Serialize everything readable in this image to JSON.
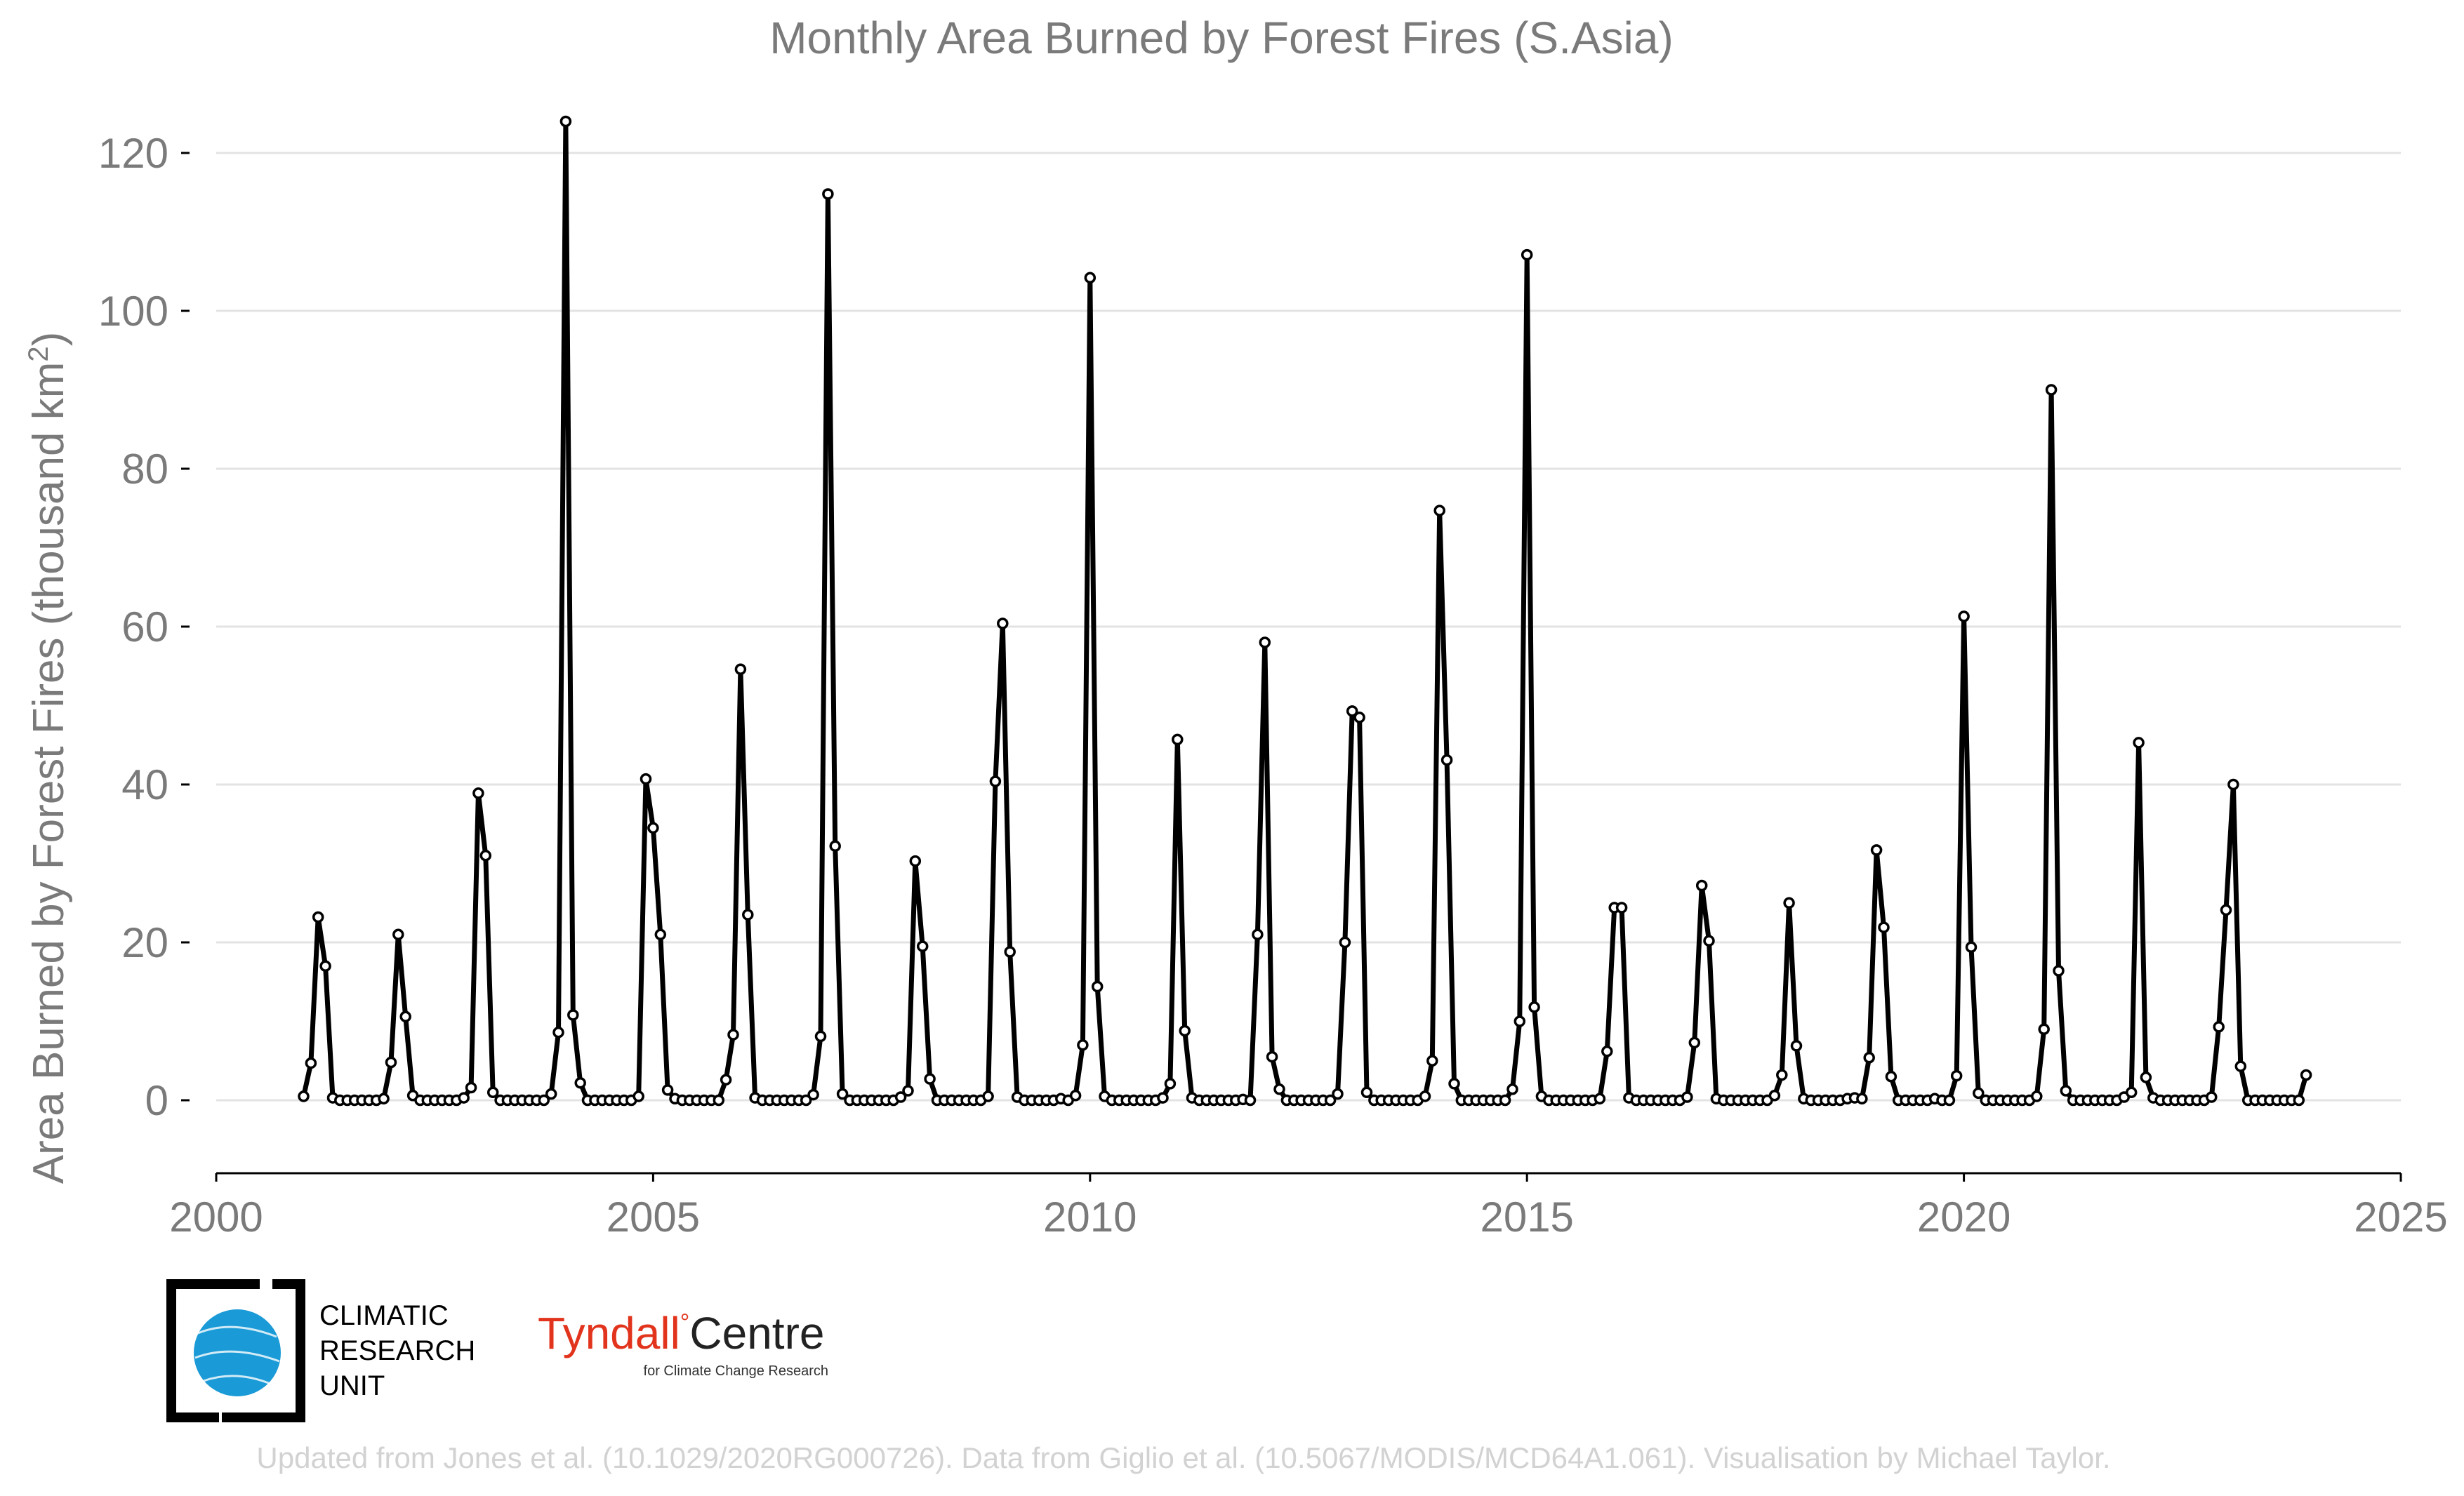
{
  "chart_data": {
    "type": "line",
    "title": "Monthly Area Burned by Forest Fires (S.Asia)",
    "ylabel": "Area Burned by Forest Fires (thousand km",
    "ylabel_sup": "2",
    "ylabel_end": ")",
    "xlim": [
      2000,
      2025
    ],
    "ylim": [
      -10,
      125
    ],
    "x_ticks": [
      "2000",
      "2005",
      "2010",
      "2015",
      "2020",
      "2025"
    ],
    "y_ticks": [
      "0",
      "20",
      "40",
      "60",
      "80",
      "100",
      "120"
    ],
    "grid": true,
    "start": "2001-01",
    "series": [
      {
        "color": "#000000",
        "values": [
          0.5,
          4.7,
          23.2,
          17.0,
          0.3,
          0,
          0,
          0,
          0,
          0,
          0,
          0.2,
          4.8,
          21.0,
          10.6,
          0.6,
          0,
          0,
          0,
          0,
          0,
          0,
          0.3,
          1.6,
          38.9,
          31.0,
          1.0,
          0,
          0,
          0,
          0,
          0,
          0,
          0,
          0.8,
          8.6,
          124.0,
          10.8,
          2.2,
          0,
          0,
          0,
          0,
          0,
          0,
          0,
          0.5,
          40.7,
          34.5,
          21.0,
          1.3,
          0.2,
          0,
          0,
          0,
          0,
          0,
          0,
          2.6,
          8.3,
          54.6,
          23.5,
          0.3,
          0,
          0,
          0,
          0,
          0,
          0,
          0,
          0.7,
          8.1,
          114.8,
          32.2,
          0.8,
          0,
          0,
          0,
          0,
          0,
          0,
          0,
          0.4,
          1.2,
          30.3,
          19.5,
          2.7,
          0,
          0,
          0,
          0,
          0,
          0,
          0,
          0.5,
          40.4,
          60.4,
          18.8,
          0.4,
          0,
          0,
          0,
          0,
          0,
          0.2,
          0,
          0.6,
          7.0,
          104.2,
          14.4,
          0.5,
          0,
          0,
          0,
          0,
          0,
          0,
          0,
          0.3,
          2.1,
          45.7,
          8.8,
          0.3,
          0,
          0,
          0,
          0,
          0,
          0,
          0.1,
          0,
          21.0,
          58.0,
          5.5,
          1.4,
          0,
          0,
          0,
          0,
          0,
          0,
          0,
          0.8,
          20.0,
          49.3,
          48.5,
          1.0,
          0,
          0,
          0,
          0,
          0,
          0,
          0,
          0.5,
          5.0,
          74.7,
          43.1,
          2.1,
          0,
          0,
          0,
          0,
          0,
          0,
          0,
          1.4,
          10.0,
          107.1,
          11.8,
          0.5,
          0,
          0,
          0,
          0,
          0,
          0,
          0,
          0.2,
          6.2,
          24.4,
          24.4,
          0.3,
          0,
          0,
          0,
          0,
          0,
          0,
          0,
          0.4,
          7.3,
          27.2,
          20.2,
          0.2,
          0,
          0,
          0,
          0,
          0,
          0,
          0,
          0.6,
          3.2,
          25.0,
          6.9,
          0.2,
          0,
          0,
          0,
          0,
          0,
          0.2,
          0.3,
          0.2,
          5.4,
          31.7,
          21.9,
          3.0,
          0,
          0,
          0,
          0,
          0,
          0.2,
          0,
          0,
          3.1,
          61.3,
          19.4,
          0.9,
          0,
          0,
          0,
          0,
          0,
          0,
          0,
          0.5,
          9.0,
          90.0,
          16.4,
          1.2,
          0,
          0,
          0,
          0,
          0,
          0,
          0,
          0.4,
          1.0,
          45.3,
          2.9,
          0.3,
          0,
          0,
          0,
          0,
          0,
          0,
          0,
          0.4,
          9.3,
          24.1,
          40.0,
          4.3,
          0,
          0,
          0,
          0,
          0,
          0,
          0,
          0,
          3.2
        ]
      }
    ]
  },
  "logos": {
    "cru_line1": "CLIMATIC",
    "cru_line2": "RESEARCH",
    "cru_line3": "UNIT",
    "tyndall_name": "Tyndall",
    "tyndall_degree": "°",
    "tyndall_centre": "Centre",
    "tyndall_sub": "for Climate Change Research",
    "tyndall_color": "#e2341d",
    "cru_globe_color": "#1a9ad6"
  },
  "footer": "Updated from Jones et al. (10.1029/2020RG000726). Data from Giglio et al. (10.5067/MODIS/MCD64A1.061). Visualisation by Michael Taylor."
}
